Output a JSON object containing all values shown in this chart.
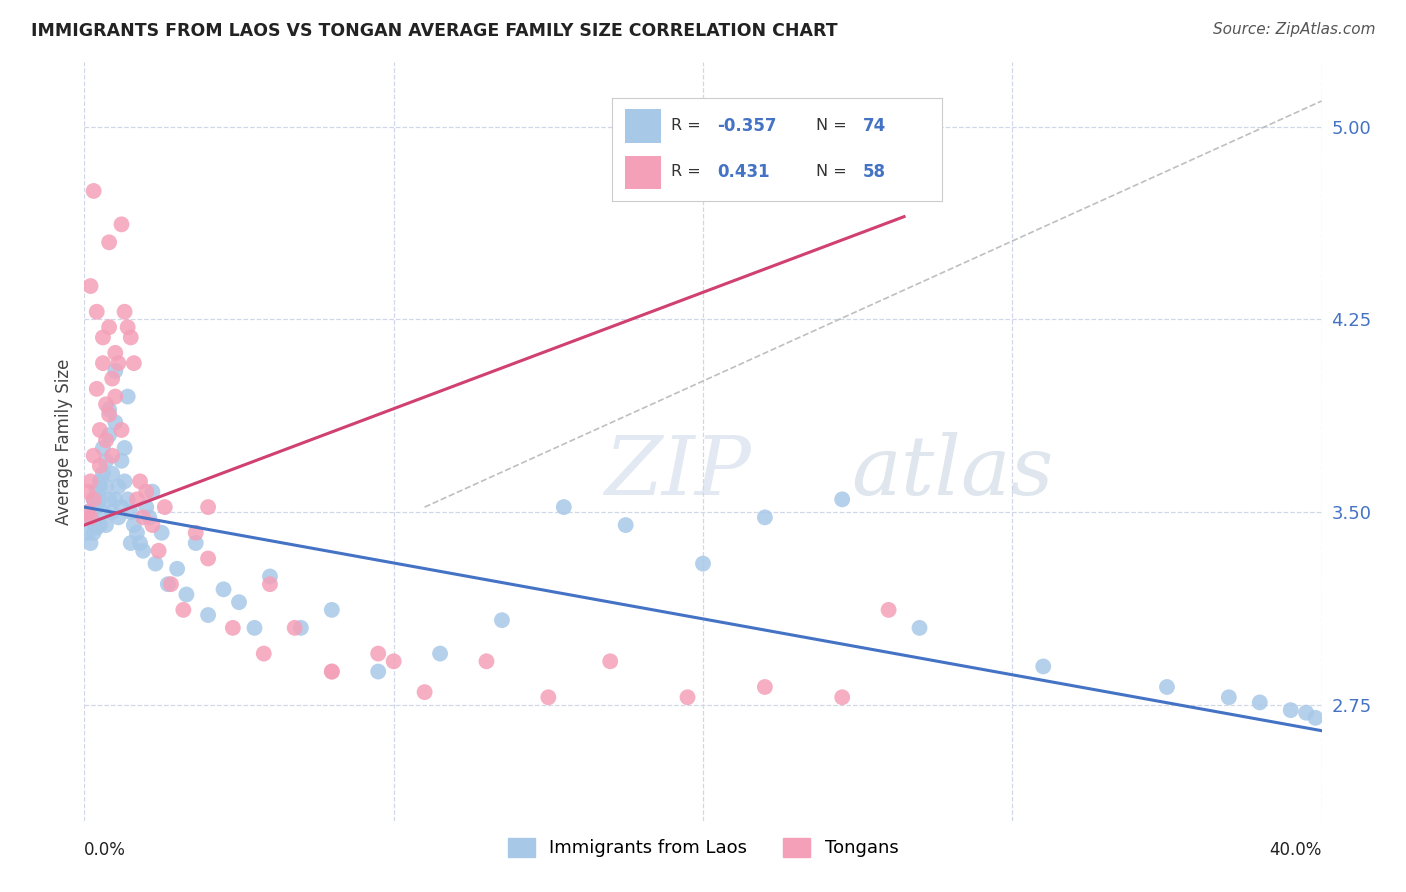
{
  "title": "IMMIGRANTS FROM LAOS VS TONGAN AVERAGE FAMILY SIZE CORRELATION CHART",
  "source": "Source: ZipAtlas.com",
  "ylabel": "Average Family Size",
  "yticks": [
    2.75,
    3.5,
    4.25,
    5.0
  ],
  "ytick_labels": [
    "2.75",
    "3.50",
    "4.25",
    "5.00"
  ],
  "xlim": [
    0.0,
    0.4
  ],
  "ylim": [
    2.3,
    5.25
  ],
  "laos_R": "-0.357",
  "laos_N": "74",
  "tongan_R": "0.431",
  "tongan_N": "58",
  "laos_color": "#a8c8e8",
  "tongan_color": "#f4a0b8",
  "laos_line_color": "#4472c4",
  "tongan_line_color": "#d04070",
  "ref_line_color": "#b8b8b8",
  "background_color": "#ffffff",
  "grid_color": "#d0d8e8",
  "laos_line_x0": 0.0,
  "laos_line_x1": 0.4,
  "laos_line_y0": 3.52,
  "laos_line_y1": 2.65,
  "tongan_line_x0": 0.0,
  "tongan_line_x1": 0.265,
  "tongan_line_y0": 3.45,
  "tongan_line_y1": 4.65,
  "ref_line_x0": 0.11,
  "ref_line_x1": 0.4,
  "ref_line_y0": 3.52,
  "ref_line_y1": 5.1,
  "laos_scatter_x": [
    0.001,
    0.001,
    0.002,
    0.002,
    0.003,
    0.003,
    0.003,
    0.004,
    0.004,
    0.004,
    0.005,
    0.005,
    0.005,
    0.005,
    0.006,
    0.006,
    0.006,
    0.007,
    0.007,
    0.007,
    0.008,
    0.008,
    0.008,
    0.009,
    0.009,
    0.01,
    0.01,
    0.01,
    0.011,
    0.011,
    0.012,
    0.012,
    0.013,
    0.013,
    0.014,
    0.014,
    0.015,
    0.015,
    0.016,
    0.017,
    0.018,
    0.019,
    0.02,
    0.021,
    0.022,
    0.023,
    0.025,
    0.027,
    0.03,
    0.033,
    0.036,
    0.04,
    0.045,
    0.05,
    0.055,
    0.06,
    0.07,
    0.08,
    0.095,
    0.115,
    0.135,
    0.155,
    0.175,
    0.2,
    0.22,
    0.245,
    0.27,
    0.31,
    0.35,
    0.37,
    0.38,
    0.39,
    0.395,
    0.398
  ],
  "laos_scatter_y": [
    3.5,
    3.42,
    3.48,
    3.38,
    3.55,
    3.46,
    3.42,
    3.58,
    3.52,
    3.44,
    3.6,
    3.55,
    3.45,
    3.62,
    3.75,
    3.65,
    3.5,
    3.7,
    3.6,
    3.45,
    3.8,
    3.9,
    3.55,
    3.65,
    3.5,
    3.85,
    4.05,
    3.55,
    3.6,
    3.48,
    3.7,
    3.52,
    3.75,
    3.62,
    3.55,
    3.95,
    3.5,
    3.38,
    3.45,
    3.42,
    3.38,
    3.35,
    3.52,
    3.48,
    3.58,
    3.3,
    3.42,
    3.22,
    3.28,
    3.18,
    3.38,
    3.1,
    3.2,
    3.15,
    3.05,
    3.25,
    3.05,
    3.12,
    2.88,
    2.95,
    3.08,
    3.52,
    3.45,
    3.3,
    3.48,
    3.55,
    3.05,
    2.9,
    2.82,
    2.78,
    2.76,
    2.73,
    2.72,
    2.7
  ],
  "tongan_scatter_x": [
    0.001,
    0.001,
    0.002,
    0.002,
    0.003,
    0.003,
    0.004,
    0.004,
    0.005,
    0.005,
    0.006,
    0.006,
    0.007,
    0.007,
    0.008,
    0.008,
    0.009,
    0.009,
    0.01,
    0.01,
    0.011,
    0.012,
    0.013,
    0.014,
    0.015,
    0.016,
    0.017,
    0.018,
    0.019,
    0.02,
    0.022,
    0.024,
    0.026,
    0.028,
    0.032,
    0.036,
    0.04,
    0.048,
    0.058,
    0.068,
    0.08,
    0.095,
    0.11,
    0.13,
    0.15,
    0.17,
    0.195,
    0.22,
    0.245,
    0.26,
    0.04,
    0.06,
    0.08,
    0.1,
    0.008,
    0.012,
    0.003,
    0.002
  ],
  "tongan_scatter_y": [
    3.5,
    3.58,
    3.62,
    3.48,
    3.72,
    3.55,
    4.28,
    3.98,
    3.82,
    3.68,
    4.18,
    4.08,
    3.92,
    3.78,
    4.22,
    3.88,
    4.02,
    3.72,
    4.12,
    3.95,
    4.08,
    3.82,
    4.28,
    4.22,
    4.18,
    4.08,
    3.55,
    3.62,
    3.48,
    3.58,
    3.45,
    3.35,
    3.52,
    3.22,
    3.12,
    3.42,
    3.32,
    3.05,
    2.95,
    3.05,
    2.88,
    2.95,
    2.8,
    2.92,
    2.78,
    2.92,
    2.78,
    2.82,
    2.78,
    3.12,
    3.52,
    3.22,
    2.88,
    2.92,
    4.55,
    4.62,
    4.75,
    4.38
  ]
}
